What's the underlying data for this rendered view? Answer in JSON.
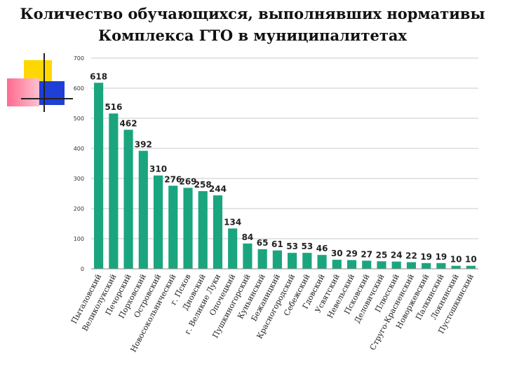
{
  "page": {
    "title_line1": "Количество обучающихся, выполнявших нормативы",
    "title_line2": "Комплекса ГТО в муниципалитетах"
  },
  "colors": {
    "bar": "#1aa57e",
    "grid": "#c8c8c8",
    "deco_yellow": "#ffd700",
    "deco_blue": "#1f3fd6",
    "deco_pink": "#ff7aa0"
  },
  "chart_data": {
    "type": "bar",
    "title": "Количество обучающихся, выполнявших нормативы Комплекса ГТО в муниципалитетах",
    "xlabel": "",
    "ylabel": "",
    "ylim": [
      0,
      700
    ],
    "yticks": [
      0,
      100,
      200,
      300,
      400,
      500,
      600,
      700
    ],
    "grid": true,
    "legend": "none",
    "data_labels": true,
    "categories": [
      "Пыталовский",
      "Великолукский",
      "Печорский",
      "Порховский",
      "Островский",
      "Новосокольнический",
      "г. Псков",
      "Дновский",
      "г. Великие Луки",
      "Опочецкий",
      "Пушкиногорский",
      "Куньинский",
      "Бежаницкий",
      "Красногородский",
      "Себежский",
      "Гдовский",
      "Усвятский",
      "Невельский",
      "Псковский",
      "Деловичский",
      "Плюсский",
      "Струго-Красненский",
      "Новоржевский",
      "Палкинский",
      "Локнянский",
      "Пустошкинский"
    ],
    "values": [
      618,
      516,
      462,
      392,
      310,
      276,
      269,
      258,
      244,
      134,
      84,
      65,
      61,
      53,
      53,
      46,
      30,
      29,
      27,
      25,
      24,
      22,
      19,
      19,
      10,
      10
    ]
  }
}
